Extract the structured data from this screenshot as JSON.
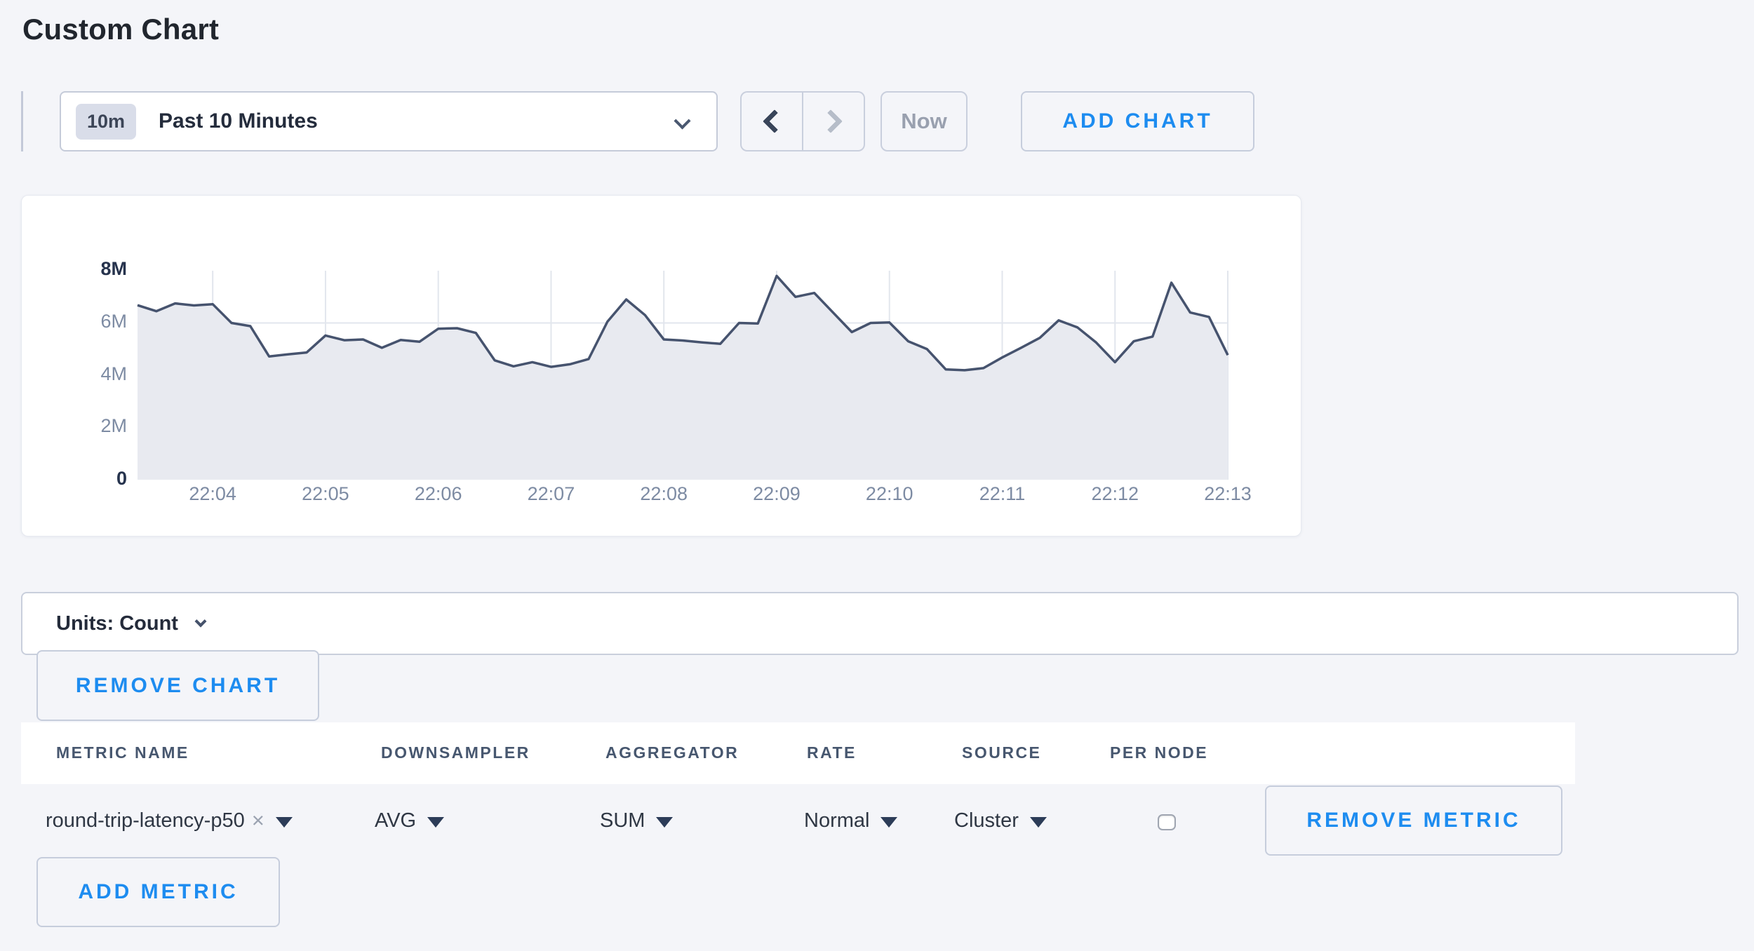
{
  "page": {
    "title": "Custom Chart"
  },
  "colors": {
    "accent_blue": "#1d8cf0",
    "page_background": "#f4f5f9",
    "chart_line": "#46536e",
    "chart_fill": "#e8eaf0",
    "gridline": "#e2e6ed",
    "axis_muted": "#7d8ba3",
    "axis_strong": "#26334d"
  },
  "toolbar": {
    "range_badge": "10m",
    "range_label": "Past 10 Minutes",
    "prev_label": "previous time window",
    "next_label": "next time window",
    "now_label": "Now",
    "add_chart_label": "ADD CHART"
  },
  "icons": {
    "clear_x": "×"
  },
  "chart_data": {
    "type": "area",
    "title": "",
    "xlabel": "",
    "ylabel": "",
    "x_ticks": [
      "22:04",
      "22:05",
      "22:06",
      "22:07",
      "22:08",
      "22:09",
      "22:10",
      "22:11",
      "22:12",
      "22:13"
    ],
    "y_ticks": [
      "0",
      "2M",
      "4M",
      "6M",
      "8M"
    ],
    "ylim_millions": [
      0,
      8
    ],
    "grid": true,
    "legend": "none",
    "sample_interval_seconds": 10,
    "first_sample_time": "22:03:20",
    "series": [
      {
        "name": "round-trip-latency-p50",
        "values_millions": [
          6.68,
          6.45,
          6.75,
          6.67,
          6.72,
          6.0,
          5.88,
          4.72,
          4.8,
          4.87,
          5.52,
          5.34,
          5.37,
          5.05,
          5.35,
          5.28,
          5.78,
          5.8,
          5.62,
          4.57,
          4.34,
          4.5,
          4.32,
          4.42,
          4.62,
          6.05,
          6.9,
          6.3,
          5.37,
          5.33,
          5.26,
          5.2,
          6.0,
          5.98,
          7.8,
          7.0,
          7.15,
          6.4,
          5.65,
          6.0,
          6.02,
          5.3,
          5.0,
          4.22,
          4.19,
          4.27,
          4.68,
          5.05,
          5.43,
          6.1,
          5.83,
          5.25,
          4.5,
          5.3,
          5.48,
          7.54,
          6.4,
          6.23,
          4.77
        ]
      }
    ]
  },
  "units_bar": {
    "label": "Units: Count"
  },
  "chart_actions": {
    "remove_chart_label": "REMOVE CHART"
  },
  "metrics_table": {
    "columns": [
      "METRIC NAME",
      "DOWNSAMPLER",
      "AGGREGATOR",
      "RATE",
      "SOURCE",
      "PER NODE"
    ],
    "rows": [
      {
        "metric_name": "round-trip-latency-p50",
        "downsampler": "AVG",
        "aggregator": "SUM",
        "rate": "Normal",
        "source": "Cluster",
        "per_node_checked": false,
        "remove_label": "REMOVE METRIC"
      }
    ],
    "add_metric_label": "ADD METRIC"
  }
}
